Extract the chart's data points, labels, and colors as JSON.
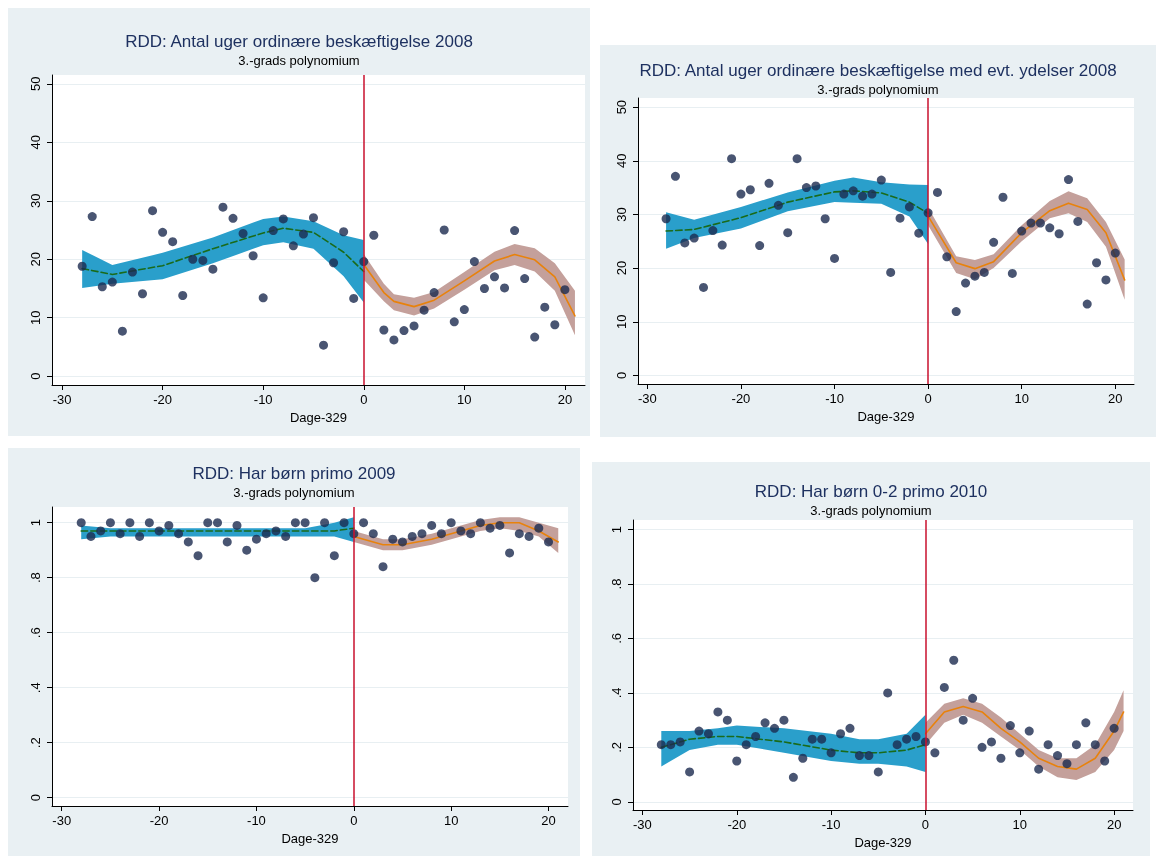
{
  "chart_data": [
    {
      "type": "scatter",
      "title": "RDD: Antal uger ordinære beskæftigelse 2008",
      "subtitle": "3.-grads polynomium",
      "xlabel": "Dage-329",
      "xlim": [
        -31,
        22
      ],
      "xticks": [
        -30,
        -20,
        -10,
        0,
        10,
        20
      ],
      "ylim": [
        -1.5,
        51.5
      ],
      "yticks": [
        0,
        10,
        20,
        30,
        40,
        50
      ],
      "grid": "y",
      "marker": "circle",
      "ref_lines": [
        {
          "axis": "x",
          "value": 0,
          "color": "#c8102e"
        }
      ],
      "series": [
        {
          "type": "scatter",
          "color": "#1c2b4f",
          "x": [
            -28,
            -27,
            -26,
            -25,
            -24,
            -23,
            -22,
            -21,
            -20,
            -19,
            -18,
            -17,
            -16,
            -15,
            -14,
            -13,
            -12,
            -11,
            -10,
            -9,
            -8,
            -7,
            -6,
            -5,
            -4,
            -3,
            -2,
            -1,
            0,
            1,
            2,
            3,
            4,
            5,
            6,
            7,
            8,
            9,
            10,
            11,
            12,
            13,
            14,
            15,
            16,
            17,
            18,
            19,
            20
          ],
          "values": [
            18.8,
            27.3,
            15.3,
            16.1,
            7.7,
            17.8,
            14.1,
            28.3,
            24.6,
            23.0,
            13.8,
            20.0,
            19.8,
            18.3,
            28.9,
            27.0,
            24.4,
            20.6,
            13.4,
            24.9,
            26.9,
            22.3,
            24.3,
            27.1,
            5.3,
            19.4,
            24.7,
            13.3,
            19.6,
            24.1,
            7.9,
            6.2,
            7.8,
            8.6,
            11.3,
            14.3,
            25.0,
            9.3,
            11.4,
            19.6,
            15.0,
            17.0,
            15.1,
            24.9,
            16.7,
            6.7,
            11.8,
            8.8,
            14.8
          ]
        },
        {
          "type": "line",
          "marker": "none",
          "color": "#1a6b1a",
          "line_style": "dashed",
          "x": [
            -28,
            -25,
            -20,
            -15,
            -10,
            -8,
            -5,
            -2,
            0
          ],
          "values": [
            18.4,
            17.4,
            18.9,
            21.8,
            24.5,
            25.3,
            24.6,
            21.2,
            17.9
          ],
          "lower": [
            15.1,
            15.8,
            16.6,
            19.3,
            22.4,
            22.9,
            21.8,
            17.1,
            12.6
          ],
          "upper": [
            21.6,
            19.0,
            21.1,
            23.7,
            26.9,
            27.3,
            26.5,
            24.1,
            23.3
          ]
        },
        {
          "type": "line",
          "marker": "none",
          "color": "#e8820c",
          "line_style": "solid",
          "x": [
            0,
            2,
            3,
            5,
            7,
            10,
            13,
            15,
            17,
            19,
            21
          ],
          "values": [
            19.1,
            14.3,
            12.8,
            11.9,
            13.0,
            16.3,
            19.7,
            20.8,
            19.9,
            17.0,
            10.3
          ],
          "lower": [
            16.5,
            12.8,
            11.3,
            10.4,
            11.6,
            14.8,
            18.1,
            19.0,
            17.9,
            14.6,
            7.0
          ],
          "upper": [
            20.9,
            15.8,
            14.0,
            13.4,
            14.4,
            17.8,
            21.3,
            22.6,
            21.9,
            19.3,
            14.6
          ]
        }
      ]
    },
    {
      "type": "scatter",
      "title": "RDD: Antal uger ordinære beskæftigelse med evt. ydelser 2008",
      "subtitle": "3.-grads polynomium",
      "xlabel": "Dage-329",
      "xlim": [
        -31,
        22
      ],
      "xticks": [
        -30,
        -20,
        -10,
        0,
        10,
        20
      ],
      "ylim": [
        -1.6,
        51.7
      ],
      "yticks": [
        0,
        10,
        20,
        30,
        40,
        50
      ],
      "grid": "y",
      "marker": "circle",
      "ref_lines": [
        {
          "axis": "x",
          "value": 0,
          "color": "#c8102e"
        }
      ],
      "series": [
        {
          "type": "scatter",
          "color": "#1c2b4f",
          "x": [
            -28,
            -27,
            -26,
            -25,
            -24,
            -23,
            -22,
            -21,
            -20,
            -19,
            -18,
            -17,
            -16,
            -15,
            -14,
            -13,
            -12,
            -11,
            -10,
            -9,
            -8,
            -7,
            -6,
            -5,
            -4,
            -3,
            -2,
            -1,
            0,
            1,
            2,
            3,
            4,
            5,
            6,
            7,
            8,
            9,
            10,
            11,
            12,
            13,
            14,
            15,
            16,
            17,
            18,
            19,
            20
          ],
          "values": [
            29.2,
            37.1,
            24.7,
            25.6,
            16.4,
            27.0,
            24.3,
            40.4,
            33.8,
            34.6,
            24.2,
            35.8,
            31.7,
            26.6,
            40.4,
            35.0,
            35.3,
            29.2,
            21.8,
            33.8,
            34.4,
            33.4,
            33.8,
            36.4,
            19.2,
            29.3,
            31.4,
            26.5,
            30.3,
            34.1,
            22.1,
            11.9,
            17.2,
            18.5,
            19.2,
            24.8,
            33.2,
            19.0,
            26.9,
            28.4,
            28.4,
            27.5,
            26.4,
            36.5,
            28.7,
            13.3,
            21.0,
            17.8,
            22.8
          ]
        },
        {
          "type": "line",
          "marker": "none",
          "color": "#1a6b1a",
          "line_style": "dashed",
          "x": [
            -28,
            -25,
            -20,
            -15,
            -10,
            -8,
            -5,
            -2,
            0
          ],
          "values": [
            26.9,
            27.2,
            29.4,
            32.3,
            34.2,
            34.4,
            34.0,
            32.3,
            30.2
          ],
          "lower": [
            23.6,
            25.6,
            27.4,
            30.6,
            32.3,
            32.2,
            32.0,
            29.6,
            24.5
          ],
          "upper": [
            30.4,
            29.0,
            31.4,
            34.1,
            36.3,
            36.9,
            36.0,
            35.6,
            35.5
          ]
        },
        {
          "type": "line",
          "marker": "none",
          "color": "#e8820c",
          "line_style": "solid",
          "x": [
            0,
            3,
            5,
            7,
            10,
            13,
            15,
            17,
            19,
            21
          ],
          "values": [
            29.7,
            21.0,
            19.9,
            21.2,
            26.6,
            30.7,
            32.1,
            30.9,
            26.6,
            17.8
          ],
          "lower": [
            28.0,
            19.1,
            17.9,
            20.0,
            25.0,
            29.3,
            30.2,
            28.6,
            24.0,
            14.1
          ],
          "upper": [
            31.3,
            22.2,
            21.5,
            22.6,
            28.0,
            32.5,
            34.3,
            33.0,
            28.6,
            21.6
          ]
        }
      ]
    },
    {
      "type": "scatter",
      "title": "RDD: Har børn primo 2009",
      "subtitle": "3.-grads polynomium",
      "xlabel": "Dage-329",
      "xlim": [
        -31,
        22
      ],
      "xticks": [
        -30,
        -20,
        -10,
        0,
        10,
        20
      ],
      "ylim": [
        -0.03,
        1.057
      ],
      "yticks": [
        0,
        {
          "value": 0.2,
          "label": ".2"
        },
        {
          "value": 0.4,
          "label": ".4"
        },
        {
          "value": 0.6,
          "label": ".6"
        },
        {
          "value": 0.8,
          "label": ".8"
        },
        1
      ],
      "grid": "y",
      "marker": "circle",
      "ref_lines": [
        {
          "axis": "x",
          "value": 0,
          "color": "#c8102e"
        }
      ],
      "series": [
        {
          "type": "scatter",
          "color": "#1c2b4f",
          "x": [
            -28,
            -27,
            -26,
            -25,
            -24,
            -23,
            -22,
            -21,
            -20,
            -19,
            -18,
            -17,
            -16,
            -15,
            -14,
            -13,
            -12,
            -11,
            -10,
            -9,
            -8,
            -7,
            -6,
            -5,
            -4,
            -3,
            -2,
            -1,
            0,
            1,
            2,
            3,
            4,
            5,
            6,
            7,
            8,
            9,
            10,
            11,
            12,
            13,
            14,
            15,
            16,
            17,
            18,
            19,
            20
          ],
          "values": [
            1.0,
            0.95,
            0.97,
            1.0,
            0.96,
            1.0,
            0.95,
            1.0,
            0.97,
            0.99,
            0.96,
            0.93,
            0.88,
            1.0,
            1.0,
            0.93,
            0.99,
            0.9,
            0.94,
            0.96,
            0.97,
            0.95,
            1.0,
            1.0,
            0.8,
            1.0,
            0.88,
            1.0,
            0.96,
            1.0,
            0.96,
            0.84,
            0.94,
            0.93,
            0.95,
            0.96,
            0.99,
            0.96,
            1.0,
            0.97,
            0.96,
            1.0,
            0.98,
            0.99,
            0.89,
            0.96,
            0.95,
            0.98,
            0.93
          ]
        },
        {
          "type": "line",
          "marker": "none",
          "color": "#1a6b1a",
          "line_style": "dashed",
          "x": [
            -28,
            -25,
            -20,
            -10,
            -5,
            -2,
            0
          ],
          "values": [
            0.97,
            0.97,
            0.97,
            0.97,
            0.97,
            0.97,
            0.98
          ],
          "lower": [
            0.94,
            0.95,
            0.95,
            0.95,
            0.95,
            0.95,
            0.93
          ],
          "upper": [
            0.99,
            0.98,
            0.98,
            0.98,
            0.98,
            1.0,
            1.02
          ]
        },
        {
          "type": "line",
          "marker": "none",
          "color": "#e8820c",
          "line_style": "solid",
          "x": [
            0,
            3,
            5,
            8,
            10,
            13,
            15,
            17,
            19,
            21
          ],
          "values": [
            0.95,
            0.92,
            0.92,
            0.94,
            0.96,
            0.99,
            1.0,
            1.0,
            0.97,
            0.93
          ],
          "lower": [
            0.93,
            0.9,
            0.9,
            0.92,
            0.94,
            0.97,
            0.98,
            0.97,
            0.95,
            0.89
          ],
          "upper": [
            0.97,
            0.94,
            0.94,
            0.96,
            0.98,
            1.01,
            1.02,
            1.02,
            1.0,
            0.98
          ]
        }
      ]
    },
    {
      "type": "scatter",
      "title": "RDD: Har børn 0-2 primo 2010",
      "subtitle": "3.-grads polynomium",
      "xlabel": "Dage-329",
      "xlim": [
        -31,
        22
      ],
      "xticks": [
        -30,
        -20,
        -10,
        0,
        10,
        20
      ],
      "ylim": [
        -0.03,
        1.035
      ],
      "yticks": [
        0,
        {
          "value": 0.2,
          "label": ".2"
        },
        {
          "value": 0.4,
          "label": ".4"
        },
        {
          "value": 0.6,
          "label": ".6"
        },
        {
          "value": 0.8,
          "label": ".8"
        },
        1
      ],
      "grid": "y",
      "marker": "circle",
      "ref_lines": [
        {
          "axis": "x",
          "value": 0,
          "color": "#c8102e"
        }
      ],
      "series": [
        {
          "type": "scatter",
          "color": "#1c2b4f",
          "x": [
            -28,
            -27,
            -26,
            -25,
            -24,
            -23,
            -22,
            -21,
            -20,
            -19,
            -18,
            -17,
            -16,
            -15,
            -14,
            -13,
            -12,
            -11,
            -10,
            -9,
            -8,
            -7,
            -6,
            -5,
            -4,
            -3,
            -2,
            -1,
            0,
            1,
            2,
            3,
            4,
            5,
            6,
            7,
            8,
            9,
            10,
            11,
            12,
            13,
            14,
            15,
            16,
            17,
            18,
            19,
            20
          ],
          "values": [
            0.21,
            0.21,
            0.22,
            0.11,
            0.26,
            0.25,
            0.33,
            0.3,
            0.15,
            0.21,
            0.24,
            0.29,
            0.27,
            0.3,
            0.09,
            0.16,
            0.23,
            0.23,
            0.18,
            0.25,
            0.27,
            0.17,
            0.17,
            0.11,
            0.4,
            0.21,
            0.23,
            0.24,
            0.22,
            0.18,
            0.42,
            0.52,
            0.3,
            0.38,
            0.2,
            0.22,
            0.16,
            0.28,
            0.18,
            0.26,
            0.12,
            0.21,
            0.17,
            0.14,
            0.21,
            0.29,
            0.21,
            0.15,
            0.27
          ]
        },
        {
          "type": "line",
          "marker": "none",
          "color": "#1a6b1a",
          "line_style": "dashed",
          "x": [
            -28,
            -25,
            -22,
            -20,
            -15,
            -10,
            -7,
            -5,
            -2,
            0
          ],
          "values": [
            0.2,
            0.23,
            0.24,
            0.24,
            0.22,
            0.19,
            0.18,
            0.18,
            0.19,
            0.21
          ],
          "lower": [
            0.13,
            0.19,
            0.21,
            0.21,
            0.18,
            0.15,
            0.14,
            0.14,
            0.13,
            0.11
          ],
          "upper": [
            0.26,
            0.26,
            0.27,
            0.28,
            0.27,
            0.25,
            0.23,
            0.23,
            0.25,
            0.32
          ]
        },
        {
          "type": "line",
          "marker": "none",
          "color": "#e8820c",
          "line_style": "solid",
          "x": [
            0,
            2,
            4,
            6,
            8,
            10,
            12,
            14,
            16,
            18,
            20,
            21
          ],
          "values": [
            0.25,
            0.33,
            0.35,
            0.33,
            0.27,
            0.22,
            0.16,
            0.13,
            0.12,
            0.16,
            0.26,
            0.33
          ],
          "lower": [
            0.21,
            0.29,
            0.32,
            0.29,
            0.24,
            0.19,
            0.13,
            0.09,
            0.08,
            0.11,
            0.19,
            0.26
          ],
          "upper": [
            0.29,
            0.36,
            0.38,
            0.36,
            0.31,
            0.25,
            0.19,
            0.16,
            0.16,
            0.21,
            0.33,
            0.41
          ]
        }
      ]
    }
  ]
}
